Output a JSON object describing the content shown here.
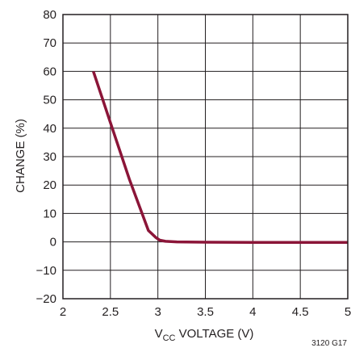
{
  "chart_data": {
    "type": "line",
    "title": "",
    "xlabel_prefix": "V",
    "xlabel_sub": "CC",
    "xlabel_suffix": " VOLTAGE (V)",
    "ylabel": "CHANGE (%)",
    "figure_id": "3120 G17",
    "xlim": [
      2,
      5
    ],
    "ylim": [
      -20,
      80
    ],
    "x_ticks": [
      2,
      2.5,
      3,
      3.5,
      4,
      4.5,
      5
    ],
    "x_tick_labels": [
      "2",
      "2.5",
      "3",
      "3.5",
      "4",
      "4.5",
      "5"
    ],
    "y_ticks": [
      80,
      70,
      60,
      50,
      40,
      30,
      20,
      10,
      0,
      -10,
      -20
    ],
    "y_tick_labels": [
      "80",
      "70",
      "60",
      "50",
      "40",
      "30",
      "20",
      "10",
      "0",
      "−10",
      "−20"
    ],
    "grid": true,
    "series": [
      {
        "color": "#8b1538",
        "x": [
          2.32,
          2.5,
          2.7,
          2.9,
          2.98,
          3.02,
          3.08,
          3.2,
          3.5,
          4.0,
          4.5,
          5.0
        ],
        "y": [
          60,
          42,
          22,
          4,
          1.5,
          0.6,
          0.2,
          0,
          -0.1,
          -0.2,
          -0.2,
          -0.2
        ]
      }
    ]
  }
}
